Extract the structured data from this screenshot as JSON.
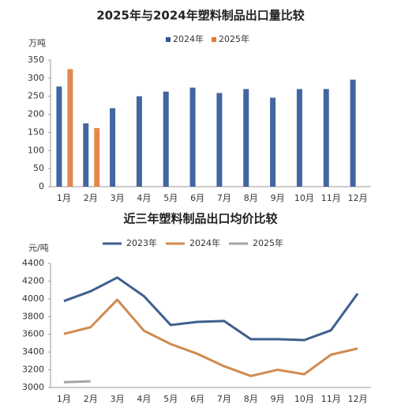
{
  "chart_data": [
    {
      "type": "bar",
      "title": "2025年与2024年塑料制品出口量比较",
      "y_label": "万吨",
      "categories": [
        "1月",
        "2月",
        "3月",
        "4月",
        "5月",
        "6月",
        "7月",
        "8月",
        "9月",
        "10月",
        "11月",
        "12月"
      ],
      "series": [
        {
          "name": "2024年",
          "color": "#2e5597",
          "values": [
            277,
            175,
            217,
            250,
            263,
            274,
            259,
            270,
            246,
            270,
            270,
            296
          ]
        },
        {
          "name": "2025年",
          "color": "#e07b39",
          "values": [
            325,
            162,
            null,
            null,
            null,
            null,
            null,
            null,
            null,
            null,
            null,
            null
          ]
        }
      ],
      "ylim": [
        0,
        350
      ],
      "yticks": [
        0,
        50,
        100,
        150,
        200,
        250,
        300,
        350
      ]
    },
    {
      "type": "line",
      "title": "近三年塑料制品出口均价比较",
      "y_label": "元/吨",
      "categories": [
        "1月",
        "2月",
        "3月",
        "4月",
        "5月",
        "6月",
        "7月",
        "8月",
        "9月",
        "10月",
        "11月",
        "12月"
      ],
      "series": [
        {
          "name": "2023年",
          "color": "#3f5f8f",
          "values": [
            3975,
            4085,
            4240,
            4030,
            3705,
            3740,
            3750,
            3545,
            3545,
            3535,
            3645,
            4060
          ]
        },
        {
          "name": "2024年",
          "color": "#d08b4f",
          "values": [
            3605,
            3680,
            3990,
            3640,
            3490,
            3380,
            3240,
            3130,
            3200,
            3150,
            3370,
            3440
          ]
        },
        {
          "name": "2025年",
          "color": "#a6a6a6",
          "values": [
            3060,
            3070,
            null,
            null,
            null,
            null,
            null,
            null,
            null,
            null,
            null,
            null
          ]
        }
      ],
      "ylim": [
        3000,
        4400
      ],
      "yticks": [
        3000,
        3200,
        3400,
        3600,
        3800,
        4000,
        4200,
        4400
      ]
    }
  ]
}
